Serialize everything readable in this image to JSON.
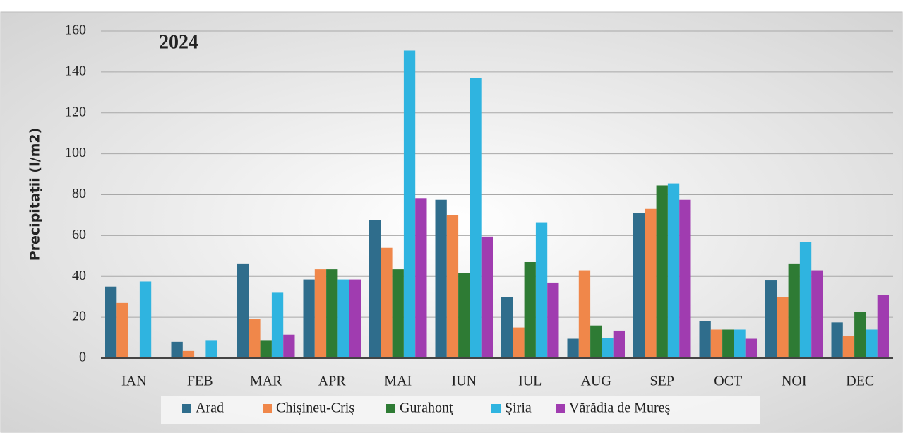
{
  "chart_data": {
    "type": "bar",
    "title": "2024",
    "y_label": "Precipitații  (l/m2)",
    "categories": [
      "IAN",
      "FEB",
      "MAR",
      "APR",
      "MAI",
      "IUN",
      "IUL",
      "AUG",
      "SEP",
      "OCT",
      "NOI",
      "DEC"
    ],
    "series": [
      {
        "name": "Arad",
        "color": "#2f6d8c",
        "values": [
          35,
          8,
          46,
          38.5,
          67.5,
          77.5,
          30,
          9.5,
          71,
          18,
          38,
          17.5
        ]
      },
      {
        "name": "Chişineu-Criş",
        "color": "#f0874a",
        "values": [
          27,
          3.5,
          19,
          43.5,
          54,
          70,
          15,
          43,
          73,
          14,
          30,
          11
        ]
      },
      {
        "name": "Gurahonţ",
        "color": "#2e7b34",
        "values": [
          null,
          null,
          8.5,
          43.5,
          43.5,
          41.5,
          47,
          16,
          84.5,
          14,
          46,
          22.5
        ]
      },
      {
        "name": "Şiria",
        "color": "#2fb4e0",
        "values": [
          37.5,
          8.5,
          32,
          38.5,
          150.5,
          137,
          66.5,
          10,
          85.5,
          14,
          57,
          14
        ]
      },
      {
        "name": "Vărădia de Mureş",
        "color": "#a03cb0",
        "values": [
          null,
          null,
          11.5,
          38.5,
          78,
          59.5,
          37,
          13.5,
          77.5,
          9.5,
          43,
          31
        ]
      }
    ],
    "ylim": [
      0,
      160
    ],
    "yticks": [
      0,
      20,
      40,
      60,
      80,
      100,
      120,
      140,
      160
    ],
    "grid": true
  }
}
